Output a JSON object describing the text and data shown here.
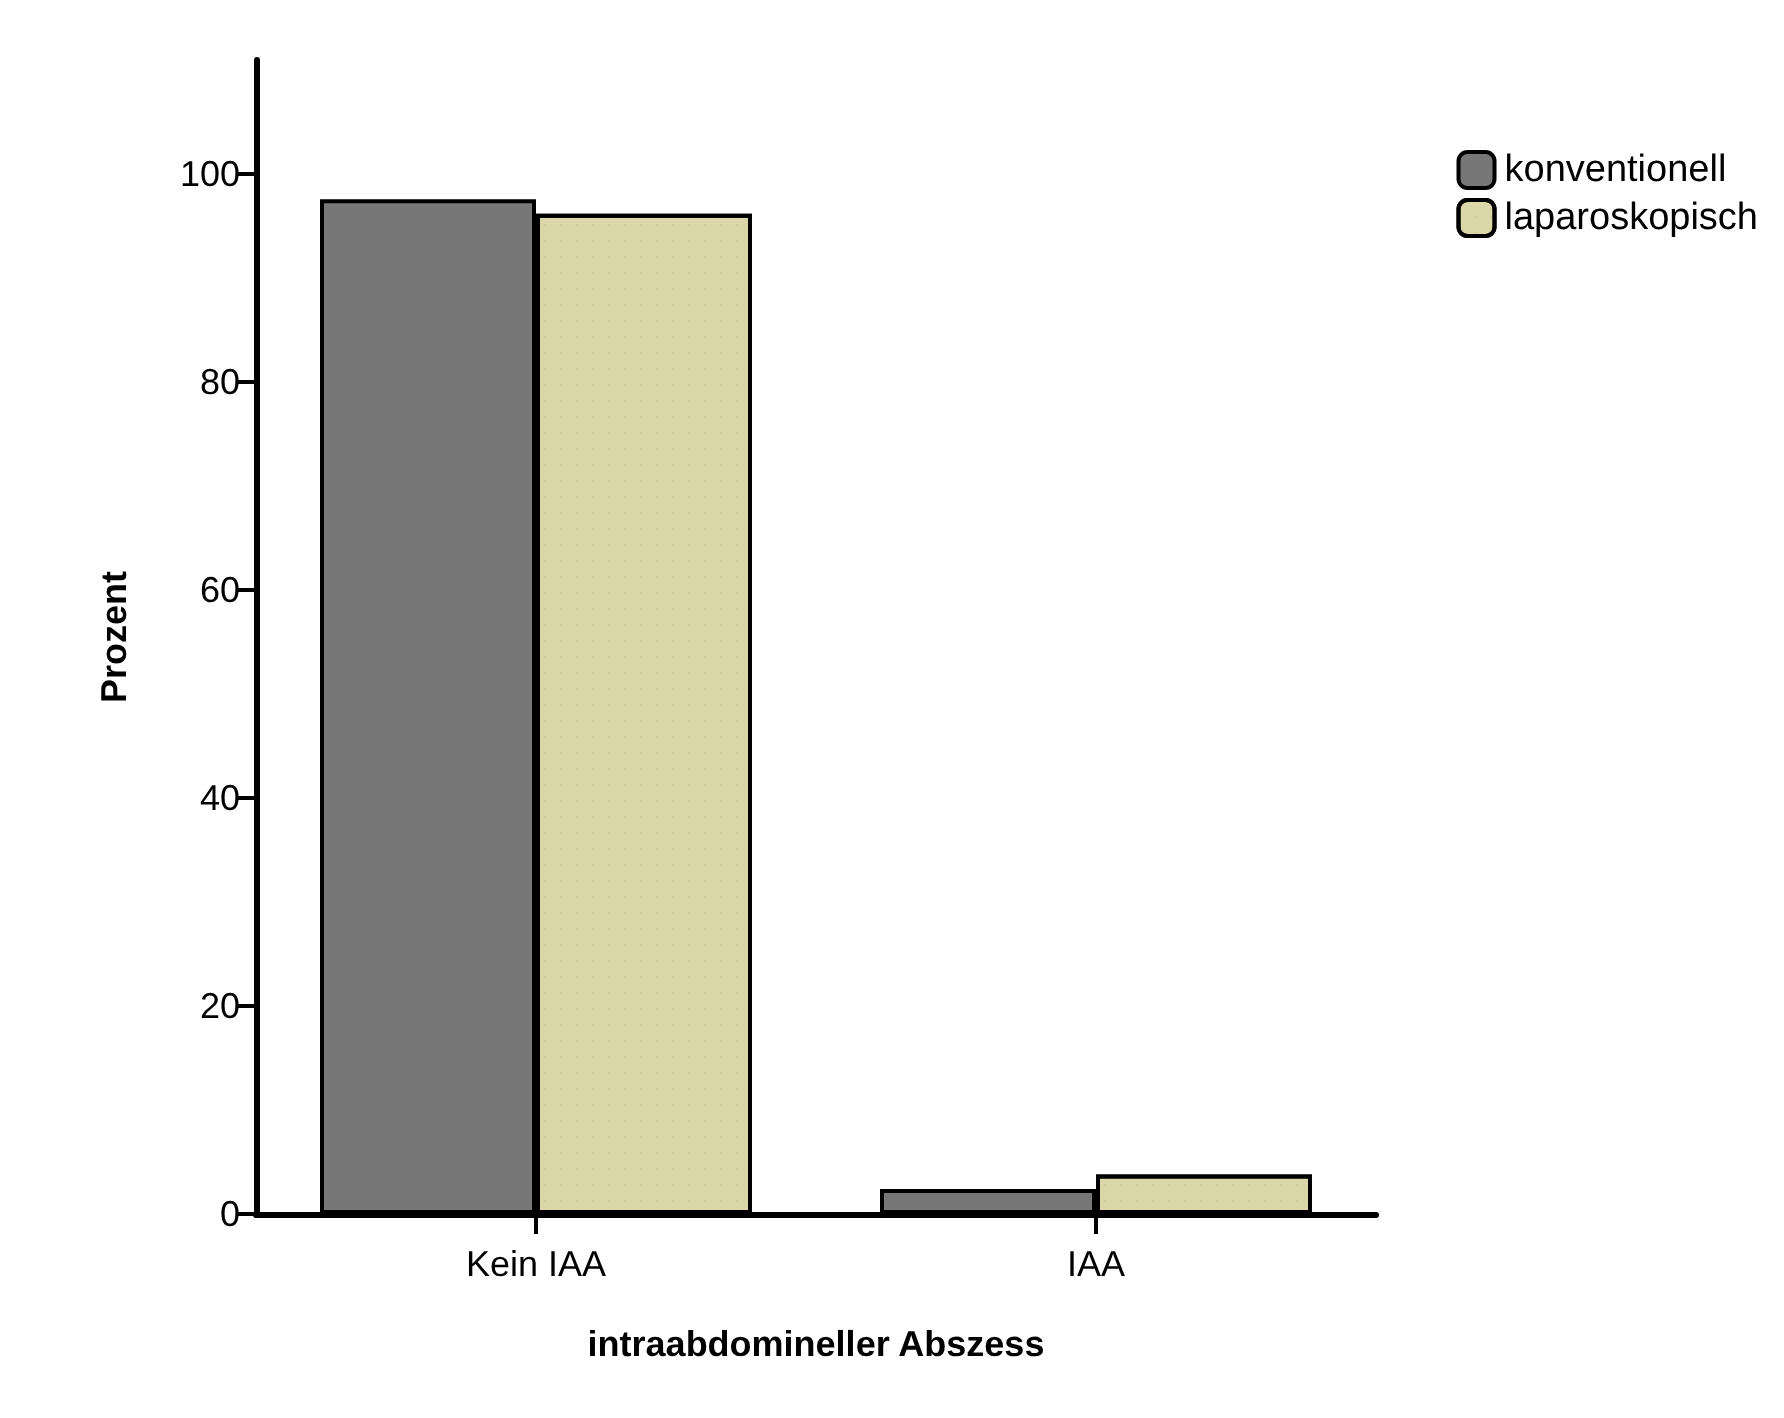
{
  "chart_data": {
    "type": "bar",
    "xlabel": "intraabdomineller Abszess",
    "ylabel": "Prozent",
    "categories": [
      "Kein IAA",
      "IAA"
    ],
    "series": [
      {
        "name": "konventionell",
        "color": "#777777",
        "values": [
          97.6,
          2.4
        ]
      },
      {
        "name": "laparoskopisch",
        "color": "#dcd7a8",
        "values": [
          96.2,
          3.8
        ]
      }
    ],
    "ylim": [
      0,
      111
    ],
    "yticks": [
      0,
      20,
      40,
      60,
      80,
      100
    ],
    "grid": false,
    "legend": "top right"
  }
}
